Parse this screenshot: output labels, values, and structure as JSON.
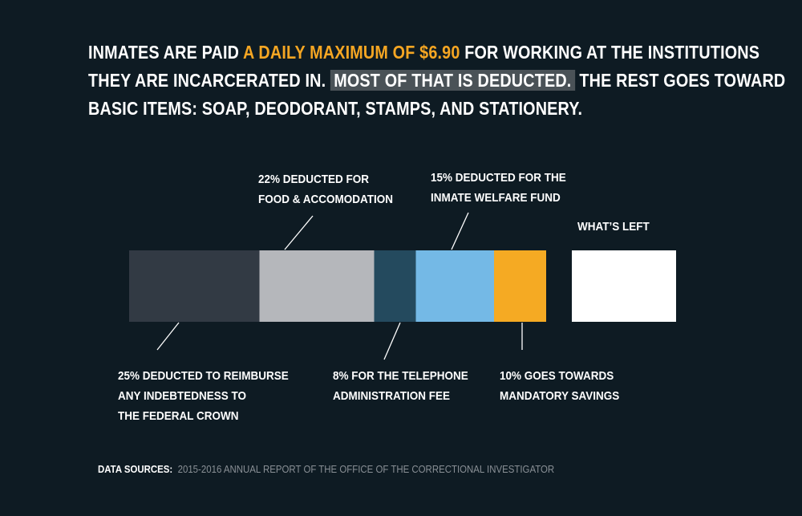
{
  "headline": {
    "part1": "INMATES ARE PAID ",
    "highlight": "A DAILY MAXIMUM OF $6.90",
    "part2": " FOR WORKING AT THE INSTITUTIONS",
    "part3": "THEY ARE INCARCERATED IN. ",
    "boxed": "MOST OF THAT IS DEDUCTED.",
    "part4": " THE REST  GOES TOWARD",
    "part5": "BASIC ITEMS: SOAP, DEODORANT, STAMPS, AND STATIONERY.",
    "highlight_color": "#f5a623",
    "box_color": "#4a5257"
  },
  "chart_data": {
    "type": "bar",
    "orientation": "horizontal-stacked",
    "unit": "percent of daily pay",
    "segments": [
      {
        "value": 25,
        "color": "#323a44",
        "label": "25% DEDUCTED TO REIMBURSE\nANY INDEBTEDNESS TO\nTHE FEDERAL CROWN"
      },
      {
        "value": 22,
        "color": "#b5b7bb",
        "label": "22% DEDUCTED FOR\nFOOD & ACCOMODATION"
      },
      {
        "value": 8,
        "color": "#244a5e",
        "label": "8% FOR THE TELEPHONE\nADMINISTRATION FEE"
      },
      {
        "value": 15,
        "color": "#74b9e6",
        "label": "15% DEDUCTED FOR THE\nINMATE WELFARE FUND"
      },
      {
        "value": 10,
        "color": "#f5aa23",
        "label": "10% GOES TOWARDS\nMANDATORY SAVINGS"
      }
    ],
    "remainder": {
      "value": 20,
      "color": "#ffffff",
      "label": "WHAT’S LEFT"
    }
  },
  "source": {
    "label": "DATA SOURCES:",
    "text": "2015-2016 ANNUAL REPORT OF THE OFFICE OF THE CORRECTIONAL INVESTIGATOR"
  }
}
